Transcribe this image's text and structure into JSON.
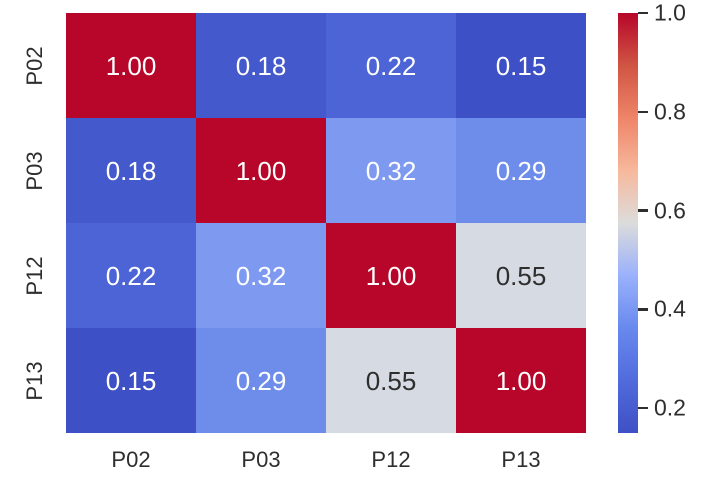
{
  "chart_data": {
    "type": "heatmap",
    "title": "",
    "categories": [
      "P02",
      "P03",
      "P12",
      "P13"
    ],
    "x_tick_labels": [
      "P02",
      "P03",
      "P12",
      "P13"
    ],
    "y_tick_labels": [
      "P02",
      "P03",
      "P12",
      "P13"
    ],
    "matrix": [
      [
        1.0,
        0.18,
        0.22,
        0.15
      ],
      [
        0.18,
        1.0,
        0.32,
        0.29
      ],
      [
        0.22,
        0.32,
        1.0,
        0.55
      ],
      [
        0.15,
        0.29,
        0.55,
        1.0
      ]
    ],
    "annot_decimals": 2,
    "colormap": "coolwarm",
    "vmin": 0.15,
    "vmax": 1.0,
    "grid": false,
    "colorbar_position": "right",
    "colorbar_ticks": [
      1.0,
      0.8,
      0.6,
      0.4,
      0.2
    ]
  },
  "colors": {
    "background": "#ffffff",
    "axis_text": "#2e2e2e",
    "cell_text_light": "#ffffff",
    "cell_text_dark": "#2e2e2e",
    "dark_text_values": [
      0.55
    ],
    "value_colors": {
      "1.00": "#b7062a",
      "0.18": "#4459cb",
      "0.22": "#4c64d5",
      "0.15": "#3e50c5",
      "0.32": "#7d9af0",
      "0.29": "#6e8deb",
      "0.55": "#d6dae2"
    },
    "colorbar_gradient": [
      "#b7062a",
      "#d05543",
      "#ee8468",
      "#f7b89c",
      "#dcdcdb",
      "#9ab1fb",
      "#6889ee",
      "#516bdc",
      "#3e50c5"
    ]
  }
}
